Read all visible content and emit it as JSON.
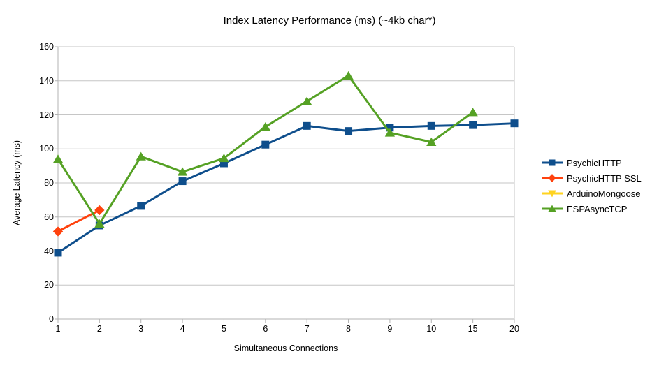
{
  "chart_data": {
    "type": "line",
    "title": "Index Latency Performance (ms) (~4kb char*)",
    "xlabel": "Simultaneous Connections",
    "ylabel": "Average Latency (ms)",
    "categories": [
      "1",
      "2",
      "3",
      "4",
      "5",
      "6",
      "7",
      "8",
      "9",
      "10",
      "15",
      "20"
    ],
    "ylim": [
      0,
      160
    ],
    "yticks": [
      0,
      20,
      40,
      60,
      80,
      100,
      120,
      140,
      160
    ],
    "grid": true,
    "legend_position": "right",
    "series": [
      {
        "name": "PsychicHTTP",
        "color": "#0E4E8C",
        "marker": "square",
        "values": [
          39,
          55,
          66.5,
          81,
          91.5,
          102.5,
          113.5,
          110.5,
          112.5,
          113.5,
          114,
          115
        ]
      },
      {
        "name": "PsychicHTTP SSL",
        "color": "#FF420E",
        "marker": "diamond",
        "values": [
          51.5,
          64,
          null,
          null,
          null,
          null,
          null,
          null,
          null,
          null,
          null,
          null
        ]
      },
      {
        "name": "ArduinoMongoose",
        "color": "#FFD320",
        "marker": "triangle-down",
        "values": [
          null,
          null,
          null,
          null,
          null,
          null,
          null,
          null,
          null,
          null,
          null,
          null
        ]
      },
      {
        "name": "ESPAsyncTCP",
        "color": "#55A124",
        "marker": "triangle-up",
        "values": [
          94,
          56,
          95.5,
          86.5,
          94.5,
          113,
          128,
          143,
          109.5,
          104,
          121.5,
          null
        ]
      }
    ]
  },
  "colors": {
    "grid": "#C6C6C6",
    "axis": "#B3B3B3",
    "text": "#000000",
    "background": "#FFFFFF"
  }
}
